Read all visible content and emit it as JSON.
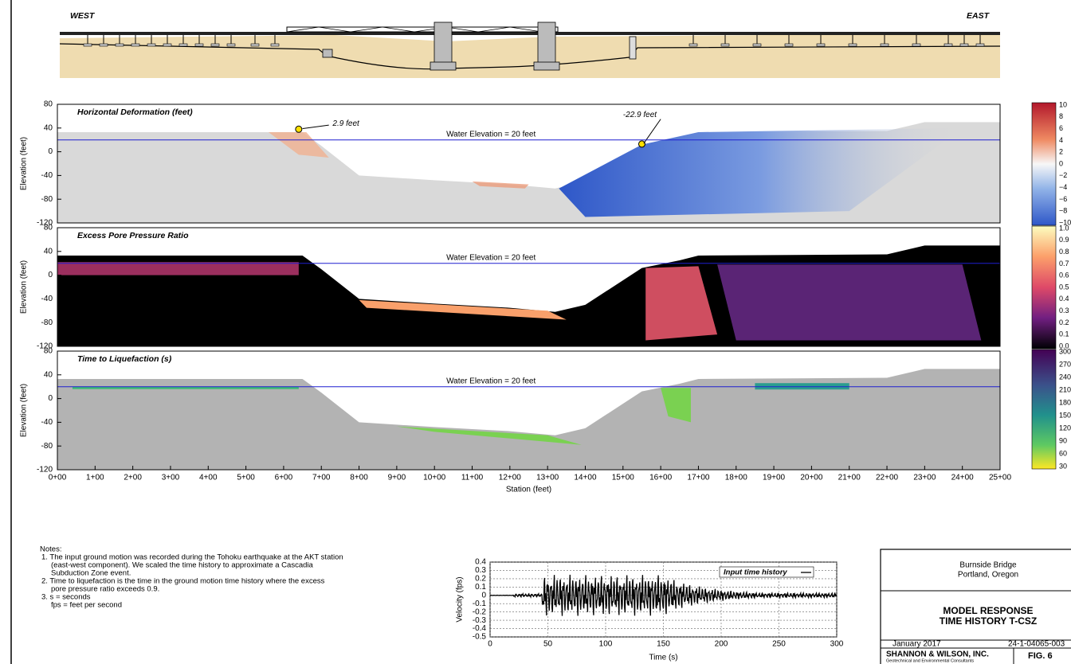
{
  "header": {
    "west": "WEST",
    "east": "EAST"
  },
  "panels": [
    {
      "title": "Horizontal Deformation (feet)",
      "water_label": "Water Elevation = 20 feet",
      "y_label": "Elevation (feet)",
      "y_ticks": [
        "80",
        "40",
        "0",
        "-40",
        "-80",
        "-120"
      ],
      "annotations": [
        "2.9 feet",
        "-22.9 feet"
      ],
      "colorbar": [
        "10",
        "8",
        "6",
        "4",
        "2",
        "0",
        "−2",
        "−4",
        "−6",
        "−8",
        "−10"
      ]
    },
    {
      "title": "Excess Pore Pressure Ratio",
      "water_label": "Water Elevation = 20 feet",
      "y_label": "Elevation (feet)",
      "y_ticks": [
        "80",
        "40",
        "0",
        "-40",
        "-80",
        "-120"
      ],
      "colorbar": [
        "1.0",
        "0.9",
        "0.8",
        "0.7",
        "0.6",
        "0.5",
        "0.4",
        "0.3",
        "0.2",
        "0.1",
        "0.0"
      ]
    },
    {
      "title": "Time to Liquefaction (s)",
      "water_label": "Water Elevation = 20 feet",
      "y_label": "Elevation (feet)",
      "y_ticks": [
        "80",
        "40",
        "0",
        "-40",
        "-80",
        "-120"
      ],
      "colorbar": [
        "300",
        "270",
        "240",
        "210",
        "180",
        "150",
        "120",
        "90",
        "60",
        "30"
      ]
    }
  ],
  "x_axis": {
    "ticks": [
      "0+00",
      "1+00",
      "2+00",
      "3+00",
      "4+00",
      "5+00",
      "6+00",
      "7+00",
      "8+00",
      "9+00",
      "10+00",
      "11+00",
      "12+00",
      "13+00",
      "14+00",
      "15+00",
      "16+00",
      "17+00",
      "18+00",
      "19+00",
      "20+00",
      "21+00",
      "22+00",
      "23+00",
      "24+00",
      "25+00"
    ],
    "label": "Station (feet)"
  },
  "notes": {
    "heading": "Notes:",
    "lines": [
      "1. The input ground motion was recorded during the Tohoku earthquake at the AKT station",
      "(east-west component).  We scaled the time history to approximate a Cascadia",
      "Subduction Zone event.",
      "2. Time to liquefaction is the time in the ground motion time history where the excess",
      "pore pressure ratio exceeds 0.9.",
      "3. s = seconds",
      "fps = feet per second"
    ]
  },
  "time_history": {
    "legend": "Input time history",
    "y_label": "Velocity (fps)",
    "x_label": "Time (s)",
    "y_ticks": [
      "0.4",
      "0.3",
      "0.2",
      "0.1",
      "0",
      "-0.1",
      "-0.2",
      "-0.3",
      "-0.4",
      "-0.5"
    ],
    "x_ticks": [
      "0",
      "50",
      "100",
      "150",
      "200",
      "250",
      "300"
    ]
  },
  "title_block": {
    "project": "Burnside Bridge",
    "location": "Portland, Oregon",
    "title_1": "MODEL RESPONSE",
    "title_2": "TIME HISTORY T-CSZ",
    "date": "January 2017",
    "job": "24-1-04065-003",
    "company": "SHANNON & WILSON, INC.",
    "company_sub": "Geotechnical and Environmental Consultants",
    "figure": "FIG. 6"
  }
}
